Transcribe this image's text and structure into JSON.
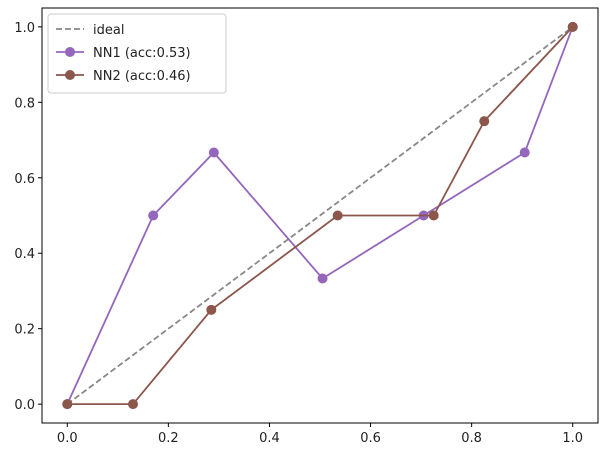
{
  "chart_data": {
    "type": "line",
    "title": "",
    "xlabel": "",
    "ylabel": "",
    "xlim": [
      -0.05,
      1.05
    ],
    "ylim": [
      -0.05,
      1.05
    ],
    "xticks": [
      "0.0",
      "0.2",
      "0.4",
      "0.6",
      "0.8",
      "1.0"
    ],
    "yticks": [
      "0.0",
      "0.2",
      "0.4",
      "0.6",
      "0.8",
      "1.0"
    ],
    "grid": false,
    "legend_position": "top-left",
    "series": [
      {
        "name": "ideal",
        "style": "dashed",
        "color": "#888888",
        "markers": false,
        "x": [
          0.0,
          1.0
        ],
        "y": [
          0.0,
          1.0
        ]
      },
      {
        "name": "NN1 (acc:0.53)",
        "style": "solid",
        "color": "#9467bd",
        "markers": true,
        "x": [
          0.0,
          0.17,
          0.29,
          0.505,
          0.705,
          0.905,
          1.0
        ],
        "y": [
          0.0,
          0.5,
          0.667,
          0.333,
          0.5,
          0.667,
          1.0
        ]
      },
      {
        "name": "NN2 (acc:0.46)",
        "style": "solid",
        "color": "#8c564b",
        "markers": true,
        "x": [
          0.0,
          0.13,
          0.285,
          0.535,
          0.725,
          0.825,
          1.0
        ],
        "y": [
          0.0,
          0.0,
          0.25,
          0.5,
          0.5,
          0.75,
          1.0
        ]
      }
    ]
  }
}
